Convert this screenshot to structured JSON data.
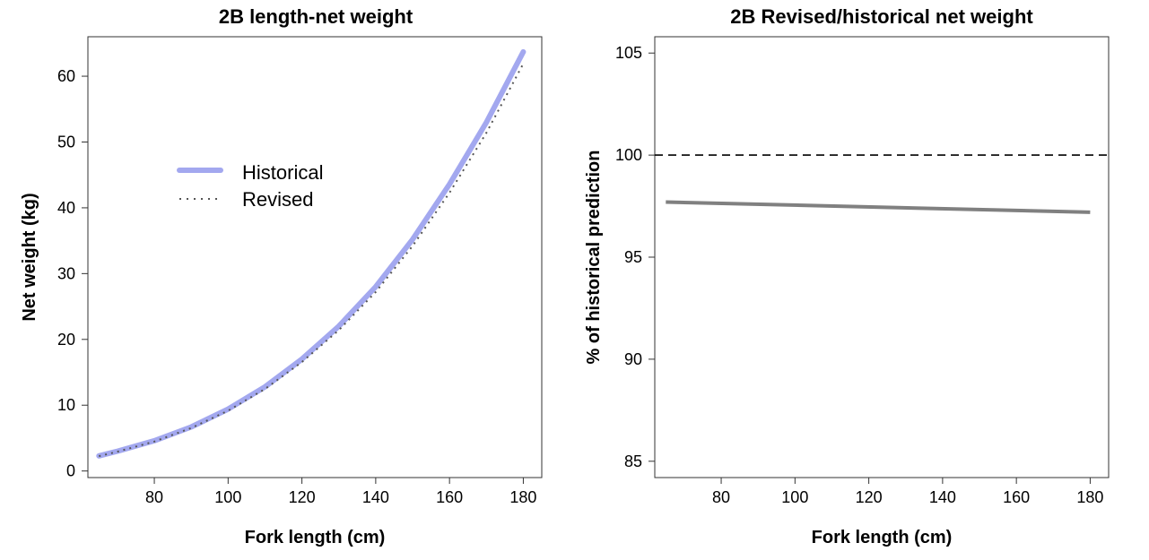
{
  "chart_data": [
    {
      "type": "line",
      "title": "2B length-net weight",
      "xlabel": "Fork length (cm)",
      "ylabel": "Net weight (kg)",
      "xlim": [
        62,
        185
      ],
      "ylim": [
        -1,
        66
      ],
      "xticks": [
        80,
        100,
        120,
        140,
        160,
        180
      ],
      "yticks": [
        0,
        10,
        20,
        30,
        40,
        50,
        60
      ],
      "grid": false,
      "legend": "upper-left",
      "series": [
        {
          "name": "Historical",
          "color": "#a3a8ef",
          "style": "solid",
          "x": [
            65,
            70,
            80,
            90,
            100,
            110,
            120,
            130,
            140,
            150,
            160,
            170,
            180
          ],
          "y": [
            2.3,
            3.0,
            4.6,
            6.7,
            9.4,
            12.8,
            17.0,
            22.0,
            28.0,
            35.2,
            43.6,
            53.0,
            63.7
          ]
        },
        {
          "name": "Revised",
          "color": "#555555",
          "style": "dotted",
          "x": [
            65,
            70,
            80,
            90,
            100,
            110,
            120,
            130,
            140,
            150,
            160,
            170,
            180
          ],
          "y": [
            2.25,
            2.93,
            4.48,
            6.53,
            9.16,
            12.47,
            16.55,
            21.4,
            27.2,
            34.2,
            42.3,
            51.4,
            61.9
          ]
        }
      ]
    },
    {
      "type": "line",
      "title": "2B Revised/historical net weight",
      "xlabel": "Fork length (cm)",
      "ylabel": "% of historical prediction",
      "xlim": [
        62,
        185
      ],
      "ylim": [
        84.2,
        105.8
      ],
      "xticks": [
        80,
        100,
        120,
        140,
        160,
        180
      ],
      "yticks": [
        85,
        90,
        95,
        100,
        105
      ],
      "grid": false,
      "reference_line": {
        "y": 100,
        "style": "dashed",
        "color": "#000000"
      },
      "series": [
        {
          "color": "#808080",
          "style": "solid",
          "x": [
            65,
            180
          ],
          "y": [
            97.7,
            97.2
          ]
        }
      ]
    }
  ]
}
